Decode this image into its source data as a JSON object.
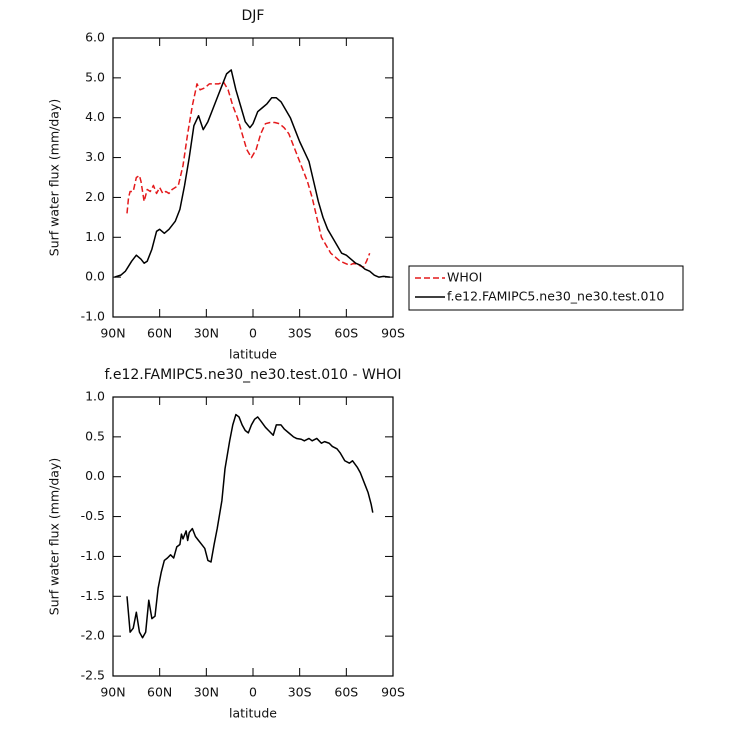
{
  "chart_data": [
    {
      "type": "line",
      "title": "DJF",
      "xlabel": "latitude",
      "ylabel": "Surf water flux (mm/day)",
      "xlim": [
        90,
        -90
      ],
      "xticks": [
        {
          "value": 90,
          "label": "90N"
        },
        {
          "value": 60,
          "label": "60N"
        },
        {
          "value": 30,
          "label": "30N"
        },
        0,
        {
          "value": -30,
          "label": "30S"
        },
        {
          "value": -60,
          "label": "60S"
        },
        {
          "value": -90,
          "label": "90S"
        }
      ],
      "ylim": [
        -1,
        6
      ],
      "yticks": [
        {
          "value": -1,
          "label": "-1.0"
        },
        {
          "value": 0,
          "label": "0.0"
        },
        {
          "value": 1,
          "label": "1.0"
        },
        {
          "value": 2,
          "label": "2.0"
        },
        {
          "value": 3,
          "label": "3.0"
        },
        {
          "value": 4,
          "label": "4.0"
        },
        {
          "value": 5,
          "label": "5.0"
        },
        {
          "value": 6,
          "label": "6.0"
        }
      ],
      "legend": "right",
      "series": [
        {
          "name": "WHOI",
          "color": "#e41a1c",
          "style": "dashed",
          "x": [
            81,
            80,
            79,
            77,
            75,
            73,
            72,
            70,
            68,
            66,
            64,
            62,
            60,
            58,
            56,
            54,
            52,
            48,
            45,
            42,
            39,
            36,
            34,
            31,
            28,
            25,
            22,
            19,
            16,
            13,
            10,
            7,
            4,
            1,
            -2,
            -5,
            -8,
            -11,
            -14,
            -17,
            -20,
            -23,
            -26,
            -29,
            -32,
            -35,
            -38,
            -41,
            -44,
            -47,
            -50,
            -53,
            -56,
            -59,
            -62,
            -65,
            -68,
            -71,
            -73,
            -75
          ],
          "values": [
            1.6,
            2.0,
            2.15,
            2.15,
            2.5,
            2.55,
            2.4,
            1.9,
            2.2,
            2.15,
            2.3,
            2.1,
            2.25,
            2.1,
            2.15,
            2.1,
            2.2,
            2.3,
            2.8,
            3.6,
            4.3,
            4.85,
            4.7,
            4.75,
            4.85,
            4.85,
            4.85,
            4.9,
            4.7,
            4.3,
            4.0,
            3.6,
            3.2,
            3.0,
            3.2,
            3.6,
            3.85,
            3.88,
            3.88,
            3.85,
            3.75,
            3.6,
            3.3,
            3.0,
            2.7,
            2.4,
            2.0,
            1.5,
            1.0,
            0.8,
            0.6,
            0.5,
            0.4,
            0.35,
            0.3,
            0.35,
            0.3,
            0.25,
            0.4,
            0.6
          ]
        },
        {
          "name": "f.e12.FAMIPC5.ne30_ne30.test.010",
          "color": "#000000",
          "style": "solid",
          "x": [
            89,
            85,
            82,
            78,
            75,
            72,
            70,
            68,
            65,
            62,
            60,
            57,
            54,
            50,
            47,
            44,
            41,
            38,
            35,
            32,
            29,
            26,
            23,
            20,
            17,
            14,
            11,
            8,
            5,
            2,
            0,
            -3,
            -6,
            -9,
            -12,
            -15,
            -18,
            -21,
            -24,
            -27,
            -30,
            -33,
            -36,
            -39,
            -42,
            -45,
            -48,
            -51,
            -54,
            -57,
            -60,
            -63,
            -66,
            -69,
            -72,
            -75,
            -78,
            -81,
            -84,
            -88
          ],
          "values": [
            0.0,
            0.05,
            0.15,
            0.4,
            0.55,
            0.45,
            0.35,
            0.4,
            0.7,
            1.15,
            1.2,
            1.1,
            1.2,
            1.4,
            1.7,
            2.3,
            3.0,
            3.8,
            4.05,
            3.7,
            3.9,
            4.2,
            4.5,
            4.8,
            5.1,
            5.2,
            4.7,
            4.3,
            3.9,
            3.75,
            3.85,
            4.15,
            4.25,
            4.35,
            4.5,
            4.5,
            4.4,
            4.2,
            4.0,
            3.7,
            3.4,
            3.15,
            2.9,
            2.4,
            1.9,
            1.5,
            1.2,
            1.0,
            0.8,
            0.6,
            0.55,
            0.45,
            0.35,
            0.3,
            0.2,
            0.15,
            0.05,
            0.0,
            0.02,
            0.0
          ]
        }
      ]
    },
    {
      "type": "line",
      "title": "f.e12.FAMIPC5.ne30_ne30.test.010 - WHOI",
      "xlabel": "latitude",
      "ylabel": "Surf water flux (mm/day)",
      "xlim": [
        90,
        -90
      ],
      "xticks": [
        {
          "value": 90,
          "label": "90N"
        },
        {
          "value": 60,
          "label": "60N"
        },
        {
          "value": 30,
          "label": "30N"
        },
        0,
        {
          "value": -30,
          "label": "30S"
        },
        {
          "value": -60,
          "label": "60S"
        },
        {
          "value": -90,
          "label": "90S"
        }
      ],
      "ylim": [
        -2.5,
        1
      ],
      "yticks": [
        {
          "value": -2.5,
          "label": "-2.5"
        },
        {
          "value": -2,
          "label": "-2.0"
        },
        -1.5,
        {
          "value": -1,
          "label": "-1.0"
        },
        -0.5,
        {
          "value": 0,
          "label": "0.0"
        },
        0.5,
        {
          "value": 1,
          "label": "1.0"
        }
      ],
      "series": [
        {
          "color": "#000000",
          "style": "solid",
          "x": [
            81,
            79,
            77,
            75,
            73,
            71,
            69,
            67,
            65,
            63,
            61,
            59,
            57,
            55,
            53,
            51,
            49,
            47,
            46,
            45,
            43,
            42,
            41,
            39,
            37,
            35,
            33,
            31,
            29,
            27,
            25,
            23,
            20,
            18,
            15,
            13,
            11,
            9,
            7,
            5,
            3,
            1,
            -1,
            -3,
            -5,
            -8,
            -10,
            -13,
            -15,
            -18,
            -20,
            -23,
            -26,
            -28,
            -31,
            -33,
            -36,
            -38,
            -41,
            -44,
            -46,
            -49,
            -51,
            -54,
            -56,
            -59,
            -62,
            -64,
            -67,
            -69,
            -72,
            -74,
            -76,
            -77
          ],
          "values": [
            -1.5,
            -1.95,
            -1.9,
            -1.7,
            -1.95,
            -2.02,
            -1.95,
            -1.55,
            -1.78,
            -1.75,
            -1.4,
            -1.2,
            -1.05,
            -1.02,
            -0.98,
            -1.02,
            -0.88,
            -0.85,
            -0.72,
            -0.78,
            -0.68,
            -0.8,
            -0.7,
            -0.65,
            -0.75,
            -0.8,
            -0.85,
            -0.9,
            -1.05,
            -1.07,
            -0.85,
            -0.65,
            -0.3,
            0.1,
            0.45,
            0.65,
            0.78,
            0.75,
            0.65,
            0.58,
            0.55,
            0.65,
            0.72,
            0.75,
            0.7,
            0.62,
            0.58,
            0.52,
            0.65,
            0.65,
            0.6,
            0.55,
            0.5,
            0.48,
            0.47,
            0.45,
            0.48,
            0.45,
            0.48,
            0.42,
            0.44,
            0.42,
            0.38,
            0.35,
            0.3,
            0.2,
            0.17,
            0.2,
            0.12,
            0.05,
            -0.1,
            -0.2,
            -0.35,
            -0.45
          ]
        }
      ]
    }
  ]
}
